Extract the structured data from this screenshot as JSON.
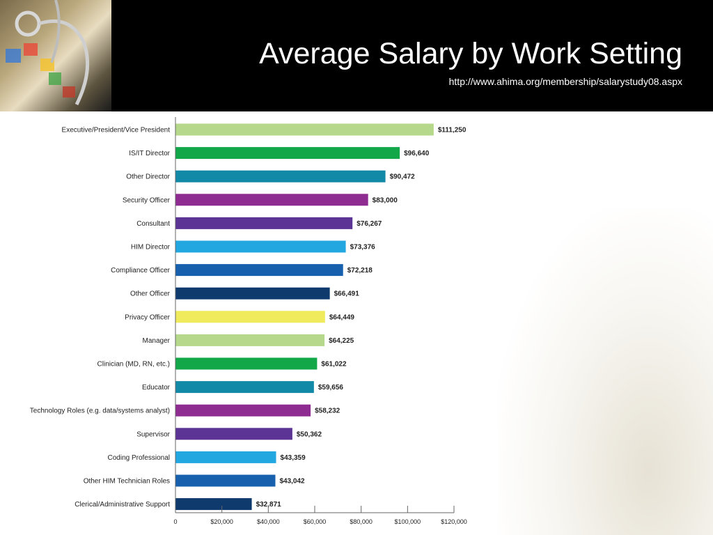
{
  "header": {
    "title": "Average Salary by Work Setting",
    "subtitle": "http://www.ahima.org/membership/salarystudy08.aspx"
  },
  "chart_data": {
    "type": "bar",
    "orientation": "horizontal",
    "categories": [
      "Executive/President/Vice President",
      "IS/IT Director",
      "Other Director",
      "Security Officer",
      "Consultant",
      "HIM Director",
      "Compliance Officer",
      "Other Officer",
      "Privacy Officer",
      "Manager",
      "Clinician (MD, RN, etc.)",
      "Educator",
      "Technology Roles (e.g. data/systems analyst)",
      "Supervisor",
      "Coding Professional",
      "Other HIM Technician Roles",
      "Clerical/Administrative Support"
    ],
    "values": [
      111250,
      96640,
      90472,
      83000,
      76267,
      73376,
      72218,
      66491,
      64449,
      64225,
      61022,
      59656,
      58232,
      50362,
      43359,
      43042,
      32871
    ],
    "value_labels": [
      "$111,250",
      "$96,640",
      "$90,472",
      "$83,000",
      "$76,267",
      "$73,376",
      "$72,218",
      "$66,491",
      "$64,449",
      "$64,225",
      "$61,022",
      "$59,656",
      "$58,232",
      "$50,362",
      "$43,359",
      "$43,042",
      "$32,871"
    ],
    "colors": [
      "#b5d88a",
      "#12a84a",
      "#1389a8",
      "#8e2c92",
      "#5b3495",
      "#22a7e0",
      "#1760ae",
      "#0f3a6e",
      "#f0eb5c",
      "#b5d88a",
      "#12a84a",
      "#1389a8",
      "#8e2c92",
      "#5b3495",
      "#22a7e0",
      "#1760ae",
      "#0f3a6e"
    ],
    "xlim": [
      0,
      120000
    ],
    "xticks": [
      0,
      20000,
      40000,
      60000,
      80000,
      100000,
      120000
    ],
    "xtick_labels": [
      "0",
      "$20,000",
      "$40,000",
      "$60,000",
      "$80,000",
      "$100,000",
      "$120,000"
    ],
    "grid": false,
    "legend": "none"
  }
}
